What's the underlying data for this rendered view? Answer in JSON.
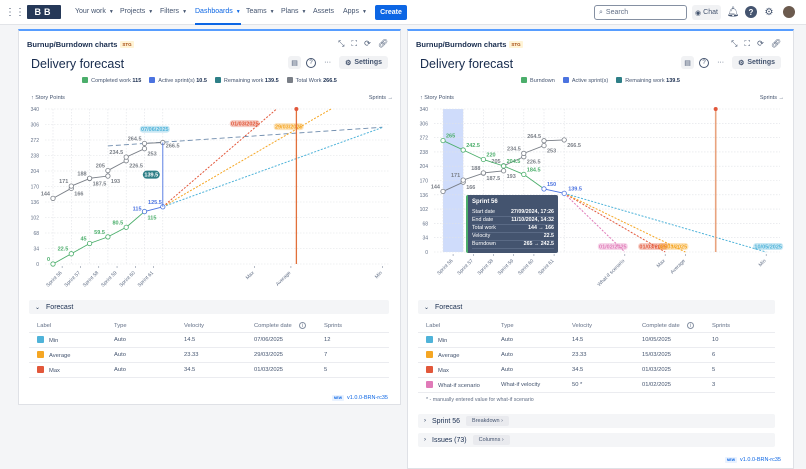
{
  "topbar": {
    "logo": "BB",
    "nav": [
      {
        "label": "Your work"
      },
      {
        "label": "Projects"
      },
      {
        "label": "Filters"
      },
      {
        "label": "Dashboards",
        "active": true
      },
      {
        "label": "Teams"
      },
      {
        "label": "Plans"
      },
      {
        "label": "Assets",
        "nochev": true
      },
      {
        "label": "Apps"
      }
    ],
    "create": "Create",
    "search_placeholder": "Search",
    "chat": "Chat"
  },
  "colors": {
    "completed": "#4bae6b",
    "active": "#4b73e0",
    "remaining": "#2e7f87",
    "total": "#7a7f87",
    "min": "#4fb3d9",
    "average": "#f5a623",
    "max": "#e2573a",
    "whatif": "#e07ab8",
    "accent": "#0c66e4"
  },
  "left": {
    "gadget_title": "Burnup/Burndown charts",
    "badge": "STG",
    "title": "Delivery forecast",
    "settings": "Settings",
    "legend": [
      {
        "label": "Completed work",
        "value": "115",
        "color": "#4bae6b"
      },
      {
        "label": "Active sprint(s)",
        "value": "10.5",
        "color": "#4b73e0"
      },
      {
        "label": "Remaining work",
        "value": "139.5",
        "color": "#2e7f87"
      },
      {
        "label": "Total Work",
        "value": "266.5",
        "color": "#7a7f87"
      }
    ],
    "forecast_title": "Forecast",
    "columns": [
      "Label",
      "Type",
      "Velocity",
      "Complete date",
      "Sprints"
    ],
    "rows": [
      {
        "label": "Min",
        "type": "Auto",
        "velocity": "14.5",
        "date": "07/06/2025",
        "sprints": "12",
        "color": "#4fb3d9"
      },
      {
        "label": "Average",
        "type": "Auto",
        "velocity": "23.33",
        "date": "29/03/2025",
        "sprints": "7",
        "color": "#f5a623"
      },
      {
        "label": "Max",
        "type": "Auto",
        "velocity": "34.5",
        "date": "01/03/2025",
        "sprints": "5",
        "color": "#e2573a"
      }
    ],
    "new": "NEW",
    "version": "v1.0.0-BRN-rc35"
  },
  "right": {
    "gadget_title": "Burnup/Burndown charts",
    "badge": "STG",
    "title": "Delivery forecast",
    "settings": "Settings",
    "legend": [
      {
        "label": "Burndown",
        "value": "",
        "color": "#4bae6b"
      },
      {
        "label": "Active sprint(s)",
        "value": "",
        "color": "#4b73e0"
      },
      {
        "label": "Remaining work",
        "value": "139.5",
        "color": "#2e7f87"
      }
    ],
    "forecast_title": "Forecast",
    "columns": [
      "Label",
      "Type",
      "Velocity",
      "Complete date",
      "Sprints"
    ],
    "rows": [
      {
        "label": "Min",
        "type": "Auto",
        "velocity": "14.5",
        "date": "10/05/2025",
        "sprints": "10",
        "color": "#4fb3d9"
      },
      {
        "label": "Average",
        "type": "Auto",
        "velocity": "23.33",
        "date": "15/03/2025",
        "sprints": "6",
        "color": "#f5a623"
      },
      {
        "label": "Max",
        "type": "Auto",
        "velocity": "34.5",
        "date": "01/03/2025",
        "sprints": "5",
        "color": "#e2573a"
      },
      {
        "label": "What-if scenario",
        "type": "What-if velocity",
        "velocity": "50 *",
        "date": "01/02/2025",
        "sprints": "3",
        "color": "#e07ab8"
      }
    ],
    "footnote": "* - manually entered value for what-if scenario",
    "sprint_section": "Sprint 56",
    "breakdown": "Breakdown ›",
    "issues_section": "Issues (73)",
    "columns_btn": "Columns ›",
    "new": "NEW",
    "version": "v1.0.0-BRN-rc35",
    "tooltip": {
      "title": "Sprint 56",
      "rows": [
        {
          "k": "Start date",
          "v": "27/09/2024, 17:26"
        },
        {
          "k": "End date",
          "v": "11/10/2024, 14:32"
        },
        {
          "k": "Total work",
          "v": "144 → 166"
        },
        {
          "k": "Velocity",
          "v": "22.5"
        },
        {
          "k": "Burndown",
          "v": "265 → 242.5"
        }
      ]
    }
  },
  "chart_data": [
    {
      "type": "line",
      "mode": "burnup",
      "ylabel": "↑ Story Points",
      "xlabel": "Sprints →",
      "ylim": [
        0,
        340
      ],
      "yticks": [
        0,
        34,
        68,
        102,
        136,
        170,
        204,
        238,
        272,
        306,
        340
      ],
      "grid": true,
      "categories": [
        "Sprint 56",
        "Sprint 57",
        "Sprint 58",
        "Sprint 59",
        "Sprint 60",
        "Sprint 61"
      ],
      "total_work": [
        {
          "start": 144,
          "end": 166
        },
        {
          "start": 171,
          "end": 187.5
        },
        {
          "start": 188,
          "end": 193
        },
        {
          "start": 205,
          "end": 226.5
        },
        {
          "start": 234.5,
          "end": 253
        },
        {
          "start": 264.5,
          "end": 266.5
        }
      ],
      "completed": [
        0,
        22.5,
        45,
        59.5,
        80.5,
        115
      ],
      "active": {
        "start": 115,
        "end": 125.5
      },
      "remaining": "139.5",
      "scope_trend": [
        259,
        300
      ],
      "forecasts": [
        {
          "label": "Min",
          "velocity": 14.5,
          "sprints": 12,
          "date": "07/06/2025",
          "color": "#4fb3d9"
        },
        {
          "label": "Average",
          "velocity": 23.33,
          "sprints": 7,
          "date": "29/03/2025",
          "color": "#f5a623"
        },
        {
          "label": "Max",
          "velocity": 34.5,
          "sprints": 5,
          "date": "01/03/2025",
          "color": "#e2573a"
        }
      ]
    },
    {
      "type": "line",
      "mode": "burndown",
      "ylabel": "↑ Story Points",
      "xlabel": "Sprints →",
      "ylim": [
        0,
        340
      ],
      "yticks": [
        0,
        34,
        68,
        102,
        136,
        170,
        204,
        238,
        272,
        306,
        340
      ],
      "grid": true,
      "categories": [
        "Sprint 56",
        "Sprint 57",
        "Sprint 58",
        "Sprint 59",
        "Sprint 60",
        "Sprint 61"
      ],
      "total_work": [
        {
          "start": 144,
          "end": 166
        },
        {
          "start": 171,
          "end": 187.5
        },
        {
          "start": 188,
          "end": 193
        },
        {
          "start": 205,
          "end": 226.5
        },
        {
          "start": 234.5,
          "end": 253
        },
        {
          "start": 264.5,
          "end": 266.5
        }
      ],
      "burndown": [
        265,
        242.5,
        220,
        204.5,
        184.5,
        150
      ],
      "active": {
        "start": 150,
        "end": 139.5
      },
      "highlight": "Sprint 56",
      "forecasts": [
        {
          "label": "What-if scenario",
          "velocity": 50,
          "sprints": 3,
          "date": "01/02/2025",
          "color": "#e07ab8"
        },
        {
          "label": "Max",
          "velocity": 34.5,
          "sprints": 5,
          "date": "01/03/2025",
          "color": "#e2573a"
        },
        {
          "label": "Average",
          "velocity": 23.33,
          "sprints": 6,
          "date": "15/03/2025",
          "color": "#f5a623"
        },
        {
          "label": "Min",
          "velocity": 14.5,
          "sprints": 10,
          "date": "10/05/2025",
          "color": "#4fb3d9"
        }
      ]
    }
  ]
}
